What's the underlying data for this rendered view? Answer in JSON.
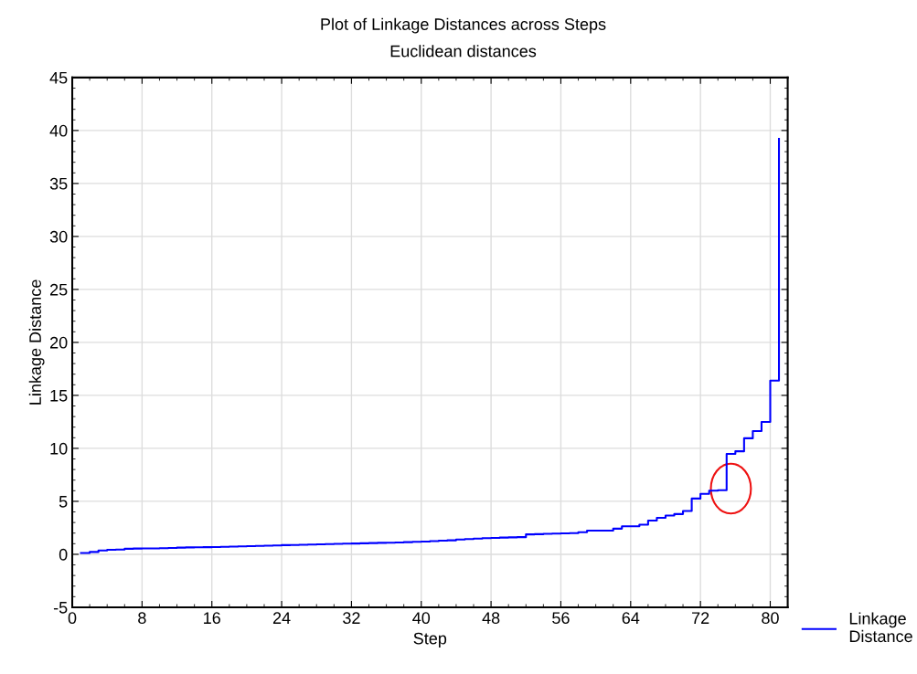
{
  "chart_data": {
    "type": "step",
    "title": "Plot of Linkage Distances across Steps",
    "subtitle": "Euclidean distances",
    "xlabel": "Step",
    "ylabel": "Linkage Distance",
    "x": [
      1,
      2,
      3,
      4,
      5,
      6,
      7,
      8,
      9,
      10,
      11,
      12,
      13,
      14,
      15,
      16,
      17,
      18,
      19,
      20,
      21,
      22,
      23,
      24,
      25,
      26,
      27,
      28,
      29,
      30,
      31,
      32,
      33,
      34,
      35,
      36,
      37,
      38,
      39,
      40,
      41,
      42,
      43,
      44,
      45,
      46,
      47,
      48,
      49,
      50,
      51,
      52,
      53,
      54,
      55,
      56,
      57,
      58,
      59,
      60,
      61,
      62,
      63,
      64,
      65,
      66,
      67,
      68,
      69,
      70,
      71,
      72,
      73,
      74,
      75,
      76,
      77,
      78,
      79,
      80,
      81
    ],
    "series": [
      {
        "name": "Linkage\nDistance",
        "color": "#0000ff",
        "values": [
          0.13,
          0.22,
          0.36,
          0.43,
          0.45,
          0.52,
          0.54,
          0.55,
          0.56,
          0.58,
          0.6,
          0.63,
          0.65,
          0.66,
          0.67,
          0.69,
          0.71,
          0.73,
          0.75,
          0.77,
          0.79,
          0.82,
          0.84,
          0.87,
          0.88,
          0.9,
          0.92,
          0.94,
          0.96,
          0.98,
          1.0,
          1.02,
          1.04,
          1.06,
          1.08,
          1.1,
          1.12,
          1.15,
          1.18,
          1.2,
          1.24,
          1.28,
          1.32,
          1.4,
          1.44,
          1.48,
          1.52,
          1.55,
          1.58,
          1.6,
          1.62,
          1.88,
          1.9,
          1.93,
          1.96,
          1.98,
          2.0,
          2.08,
          2.24,
          2.24,
          2.24,
          2.42,
          2.64,
          2.64,
          2.79,
          3.19,
          3.44,
          3.66,
          3.8,
          4.09,
          5.26,
          5.71,
          6.0,
          6.05,
          9.47,
          9.72,
          10.95,
          11.63,
          12.49,
          16.4,
          39.2
        ]
      }
    ],
    "xlim": [
      0,
      82
    ],
    "xticks": [
      0,
      8,
      16,
      24,
      32,
      40,
      48,
      56,
      64,
      72,
      80
    ],
    "ylim": [
      -5,
      45
    ],
    "yticks": [
      -5,
      0,
      5,
      10,
      15,
      20,
      25,
      30,
      35,
      40,
      45
    ],
    "grid": true,
    "legend": "bottom right",
    "marker": "none",
    "line_style": "solid"
  }
}
